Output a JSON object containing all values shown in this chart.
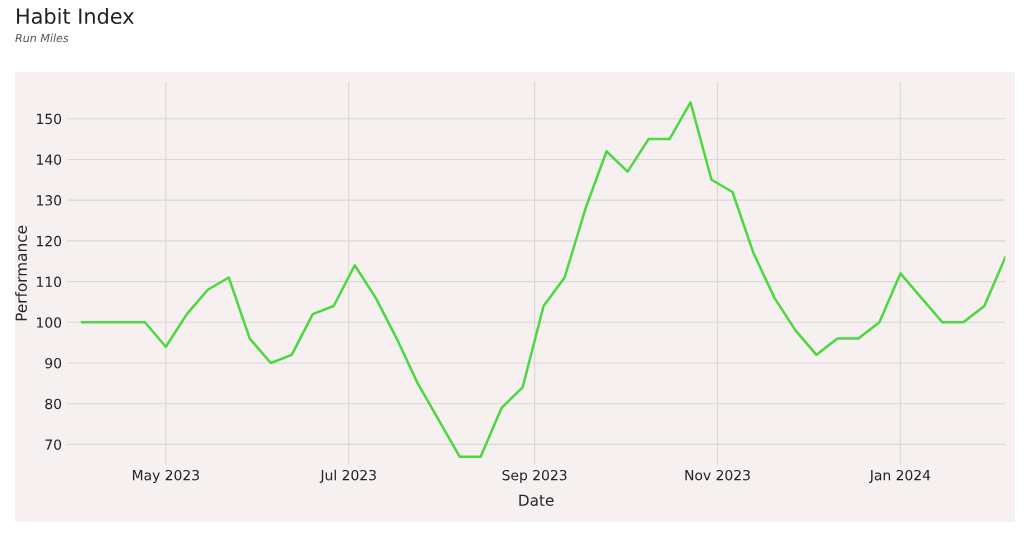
{
  "chart_data": {
    "type": "line",
    "title": "Habit Index",
    "subtitle": "Run Miles",
    "xlabel": "Date",
    "ylabel": "Performance",
    "x": [
      "2023-04-03",
      "2023-04-10",
      "2023-04-17",
      "2023-04-24",
      "2023-05-01",
      "2023-05-08",
      "2023-05-15",
      "2023-05-22",
      "2023-05-29",
      "2023-06-05",
      "2023-06-12",
      "2023-06-19",
      "2023-06-26",
      "2023-07-03",
      "2023-07-10",
      "2023-07-17",
      "2023-07-24",
      "2023-07-31",
      "2023-08-07",
      "2023-08-14",
      "2023-08-21",
      "2023-08-28",
      "2023-09-04",
      "2023-09-11",
      "2023-09-18",
      "2023-09-25",
      "2023-10-02",
      "2023-10-09",
      "2023-10-16",
      "2023-10-23",
      "2023-10-30",
      "2023-11-06",
      "2023-11-13",
      "2023-11-20",
      "2023-11-27",
      "2023-12-04",
      "2023-12-11",
      "2023-12-18",
      "2023-12-25",
      "2024-01-01",
      "2024-01-08",
      "2024-01-15",
      "2024-01-22",
      "2024-01-29",
      "2024-02-05"
    ],
    "series": [
      {
        "color": "#4cd840",
        "values": [
          100,
          100,
          100,
          100,
          94,
          102,
          108,
          111,
          96,
          90,
          92,
          102,
          104,
          114,
          106,
          96,
          85,
          76,
          67,
          67,
          79,
          84,
          104,
          111,
          128,
          142,
          137,
          145,
          145,
          154,
          135,
          132,
          117,
          106,
          98,
          92,
          96,
          96,
          100,
          112,
          106,
          100,
          100,
          104,
          116
        ]
      }
    ],
    "xlim": [
      "2023-03-29",
      "2024-02-05"
    ],
    "xticks": [
      {
        "value": "2023-05-01",
        "label": "May 2023"
      },
      {
        "value": "2023-07-01",
        "label": "Jul 2023"
      },
      {
        "value": "2023-09-01",
        "label": "Sep 2023"
      },
      {
        "value": "2023-11-01",
        "label": "Nov 2023"
      },
      {
        "value": "2024-01-01",
        "label": "Jan 2024"
      }
    ],
    "ylim": [
      65,
      159
    ],
    "yticks": [
      70,
      80,
      90,
      100,
      110,
      120,
      130,
      140,
      150
    ],
    "grid": true,
    "marker": "none",
    "line_style": "solid"
  }
}
